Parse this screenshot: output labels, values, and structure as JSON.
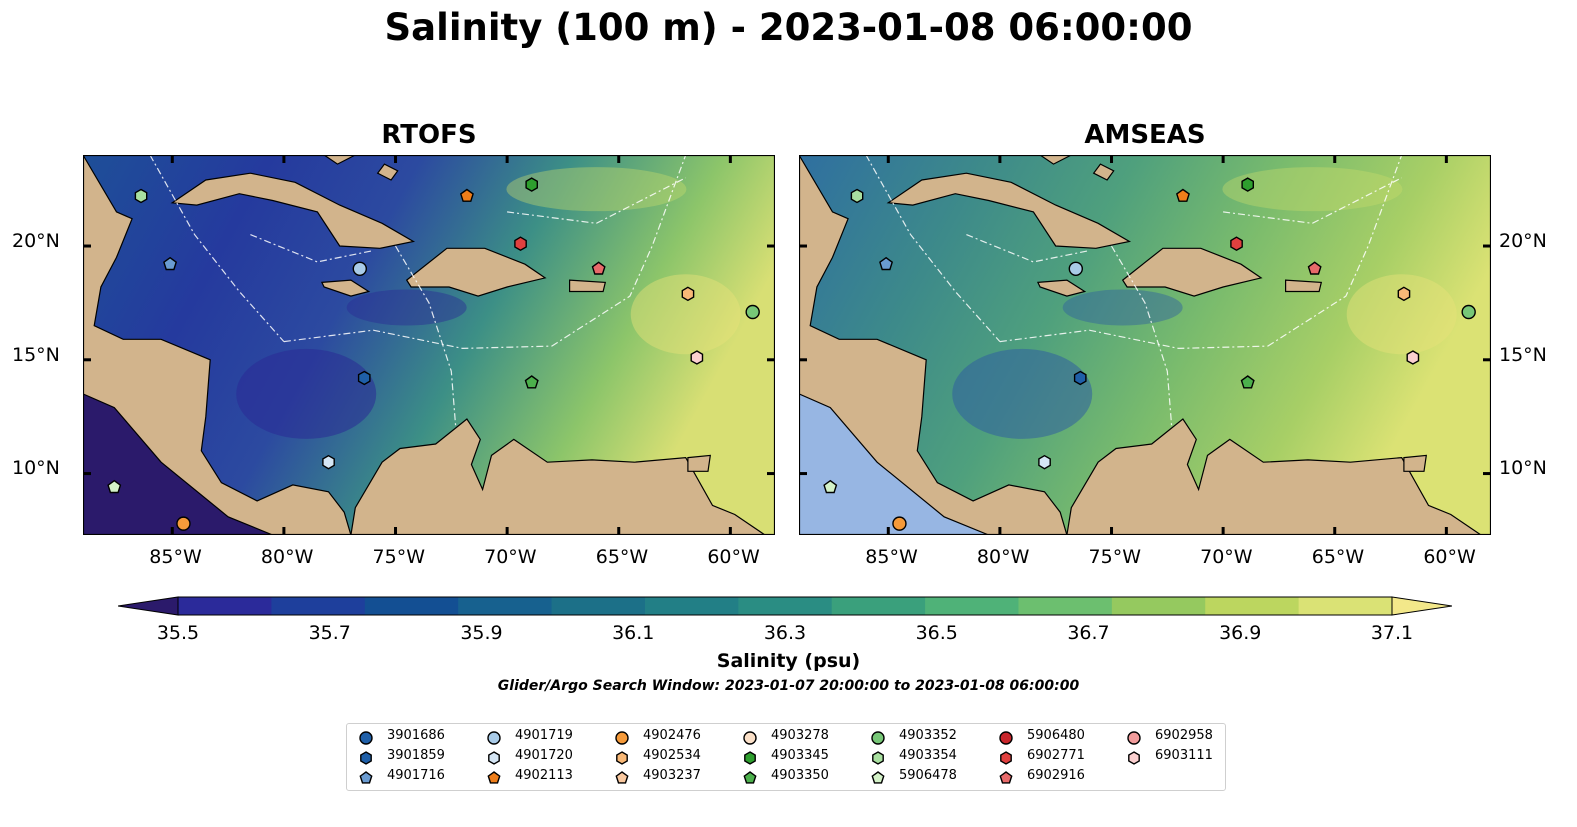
{
  "title": "Salinity (100 m) - 2023-01-08 06:00:00",
  "panels": [
    {
      "title": "RTOFS"
    },
    {
      "title": "AMSEAS"
    }
  ],
  "lon_labels": [
    "85°W",
    "80°W",
    "75°W",
    "70°W",
    "65°W",
    "60°W"
  ],
  "lat_labels": [
    "20°N",
    "15°N",
    "10°N"
  ],
  "colorbar": {
    "ticks": [
      "35.5",
      "35.7",
      "35.9",
      "36.1",
      "36.3",
      "36.5",
      "36.7",
      "36.9",
      "37.1"
    ],
    "label": "Salinity (psu)",
    "colors": [
      "#2b1a6b",
      "#2b2a9a",
      "#1e3f9c",
      "#134f93",
      "#17618f",
      "#1c7088",
      "#227f86",
      "#2a8d83",
      "#3aa07c",
      "#4fb278",
      "#6cbf6f",
      "#95c95f",
      "#bcd65f",
      "#dae275",
      "#f3e88a"
    ],
    "extend": "both"
  },
  "subtitle": "Glider/Argo Search Window: 2023-01-07 20:00:00 to 2023-01-08 06:00:00",
  "legend": [
    {
      "label": "3901686",
      "marker": "circle",
      "color": "#1f5fa8"
    },
    {
      "label": "3901859",
      "marker": "hexagon",
      "color": "#1f5fa8"
    },
    {
      "label": "4901716",
      "marker": "pentagon",
      "color": "#6a9bd1"
    },
    {
      "label": "4901719",
      "marker": "circle",
      "color": "#a9cbe8"
    },
    {
      "label": "4901720",
      "marker": "hexagon",
      "color": "#d5e6f5"
    },
    {
      "label": "4902113",
      "marker": "pentagon",
      "color": "#ef7e1a"
    },
    {
      "label": "4902476",
      "marker": "circle",
      "color": "#f59a3a"
    },
    {
      "label": "4902534",
      "marker": "hexagon",
      "color": "#f8b877"
    },
    {
      "label": "4903237",
      "marker": "pentagon",
      "color": "#fac9a0"
    },
    {
      "label": "4903278",
      "marker": "circle",
      "color": "#fbe0c8"
    },
    {
      "label": "4903345",
      "marker": "hexagon",
      "color": "#2e9e2e"
    },
    {
      "label": "4903350",
      "marker": "pentagon",
      "color": "#4cb04c"
    },
    {
      "label": "4903352",
      "marker": "circle",
      "color": "#77c777"
    },
    {
      "label": "4903354",
      "marker": "hexagon",
      "color": "#a9e0a0"
    },
    {
      "label": "5906478",
      "marker": "pentagon",
      "color": "#d4f2c8"
    },
    {
      "label": "5906480",
      "marker": "circle",
      "color": "#c9252b"
    },
    {
      "label": "6902771",
      "marker": "hexagon",
      "color": "#e0403f"
    },
    {
      "label": "6902916",
      "marker": "pentagon",
      "color": "#e86a6a"
    },
    {
      "label": "6902958",
      "marker": "circle",
      "color": "#f29c9c"
    },
    {
      "label": "6903111",
      "marker": "hexagon",
      "color": "#fbd0d0"
    }
  ],
  "map_extent": {
    "lon": [
      -89,
      -58
    ],
    "lat": [
      7.3,
      24
    ]
  },
  "land_color": "#d2b48c",
  "float_positions": [
    {
      "id": "4901716",
      "lon": -85.1,
      "lat": 19.2
    },
    {
      "id": "5906478",
      "lon": -87.6,
      "lat": 9.4
    },
    {
      "id": "4902476",
      "lon": -84.5,
      "lat": 7.8
    },
    {
      "id": "4901720",
      "lon": -78.0,
      "lat": 10.5
    },
    {
      "id": "3901859",
      "lon": -76.4,
      "lat": 14.2
    },
    {
      "id": "4901719",
      "lon": -76.6,
      "lat": 19.0
    },
    {
      "id": "4903354",
      "lon": -86.4,
      "lat": 22.2
    },
    {
      "id": "4902113",
      "lon": -71.8,
      "lat": 22.2
    },
    {
      "id": "4903345",
      "lon": -68.9,
      "lat": 22.7
    },
    {
      "id": "6902771",
      "lon": -69.4,
      "lat": 20.1
    },
    {
      "id": "6902916",
      "lon": -65.9,
      "lat": 19.0
    },
    {
      "id": "4902534",
      "lon": -61.9,
      "lat": 17.9
    },
    {
      "id": "4903352",
      "lon": -59.0,
      "lat": 17.1
    },
    {
      "id": "4903350",
      "lon": -68.9,
      "lat": 14.0
    },
    {
      "id": "6903111",
      "lon": -61.5,
      "lat": 15.1
    }
  ]
}
